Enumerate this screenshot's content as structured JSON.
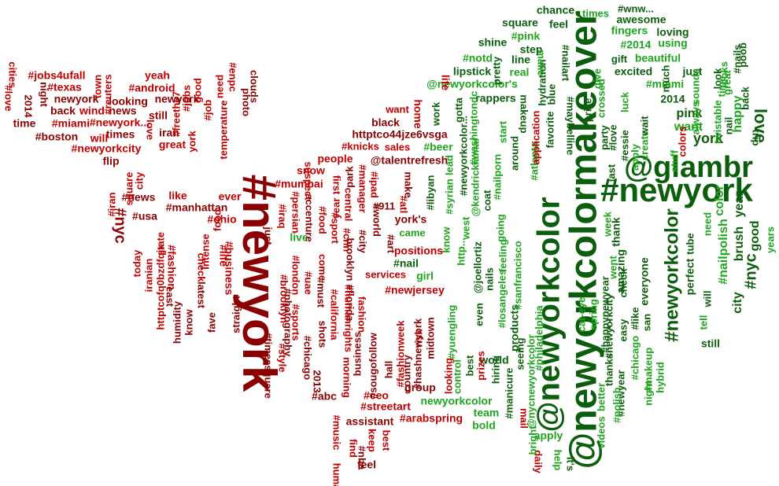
{
  "colors": {
    "red_dark": "#8b0000",
    "red": "#c00000",
    "green_dark": "#0b5e0b",
    "green": "#1ea51e",
    "green_light": "#33cc33"
  },
  "words": [
    {
      "text": "#newyork"
    },
    {
      "text": "@newyorkcolormakeover"
    },
    {
      "text": "@newyorkcolor"
    },
    {
      "text": "#newyork"
    },
    {
      "text": "@glambr"
    },
    {
      "text": "#newyorkcolor"
    },
    {
      "text": "newyork"
    },
    {
      "text": "love"
    },
    {
      "text": "york"
    },
    {
      "text": "color"
    },
    {
      "text": "#nailpolish"
    },
    {
      "text": "#nyc"
    },
    {
      "text": "brush"
    },
    {
      "text": "year"
    },
    {
      "text": "happy"
    },
    {
      "text": "good"
    },
    {
      "text": "city"
    },
    {
      "text": "#nyc"
    },
    {
      "text": "chance"
    },
    {
      "text": "times"
    },
    {
      "text": "#wnw..."
    },
    {
      "text": "awesome"
    },
    {
      "text": "feel"
    },
    {
      "text": "fingers"
    },
    {
      "text": "loving"
    },
    {
      "text": "square"
    },
    {
      "text": "#pink"
    },
    {
      "text": "#2014"
    },
    {
      "text": "using"
    },
    {
      "text": "shine"
    },
    {
      "text": "step"
    },
    {
      "text": "gift"
    },
    {
      "text": "beautiful"
    },
    {
      "text": "excited"
    },
    {
      "text": "just"
    },
    {
      "text": "#miami"
    },
    {
      "text": "2014"
    },
    {
      "text": "pink"
    },
    {
      "text": "want"
    },
    {
      "text": "line"
    },
    {
      "text": "lipstick"
    },
    {
      "text": "real"
    },
    {
      "text": "rappers"
    },
    {
      "text": "@newyorkcolor's"
    },
    {
      "text": "#notd"
    },
    {
      "text": "#nailart"
    },
    {
      "text": "black"
    },
    {
      "text": "httptco44jze6vsga"
    },
    {
      "text": "want"
    },
    {
      "text": "home"
    },
    {
      "text": "life"
    },
    {
      "text": "#knicks"
    },
    {
      "text": "sales"
    },
    {
      "text": "#beer"
    },
    {
      "text": "people"
    },
    {
      "text": "@talentrefresh"
    },
    {
      "text": "snow"
    },
    {
      "text": "#mumbai"
    },
    {
      "text": "#911"
    },
    {
      "text": "york's"
    },
    {
      "text": "came"
    },
    {
      "text": "live"
    },
    {
      "text": "positions"
    },
    {
      "text": "#nail"
    },
    {
      "text": "services"
    },
    {
      "text": "girl"
    },
    {
      "text": "#newjersey"
    },
    {
      "text": "#jobs4ufall"
    },
    {
      "text": "#texas"
    },
    {
      "text": "newyork"
    },
    {
      "text": "back"
    },
    {
      "text": "wind"
    },
    {
      "text": "news"
    },
    {
      "text": "#miami"
    },
    {
      "text": "#newyork..."
    },
    {
      "text": "time"
    },
    {
      "text": "times"
    },
    {
      "text": "#boston"
    },
    {
      "text": "will"
    },
    {
      "text": "#newyorkcity"
    },
    {
      "text": "#android"
    },
    {
      "text": "yeah"
    },
    {
      "text": "looking"
    },
    {
      "text": "still"
    },
    {
      "text": "iran"
    },
    {
      "text": "great"
    },
    {
      "text": "love"
    },
    {
      "text": "2014"
    },
    {
      "text": "night"
    },
    {
      "text": "flip"
    },
    {
      "text": "#news"
    },
    {
      "text": "like"
    },
    {
      "text": "#usa"
    },
    {
      "text": "#manhattan"
    },
    {
      "text": "ever"
    },
    {
      "text": "#ohio"
    },
    {
      "text": "#life"
    },
    {
      "text": "#business"
    },
    {
      "text": "east"
    },
    {
      "text": "latest"
    },
    {
      "text": "check"
    },
    {
      "text": "#fashion"
    },
    {
      "text": "#ceo"
    },
    {
      "text": "#streetart"
    },
    {
      "text": "assistant"
    },
    {
      "text": "#arabspring"
    },
    {
      "text": "group"
    },
    {
      "text": "newyorkcolor"
    },
    {
      "text": "team"
    },
    {
      "text": "bold"
    },
    {
      "text": "apply"
    },
    {
      "text": "#abc"
    },
    {
      "text": "feel"
    },
    {
      "text": "world"
    },
    {
      "text": "products"
    },
    {
      "text": "perfect"
    },
    {
      "text": "still"
    },
    {
      "text": "everyone"
    },
    {
      "text": "thank"
    },
    {
      "text": "amazing"
    },
    {
      "text": "daily"
    },
    {
      "text": "help"
    },
    {
      "text": "it's"
    },
    {
      "text": "mail"
    },
    {
      "text": "good"
    },
    {
      "text": "gotta"
    },
    {
      "text": "work"
    },
    {
      "text": "#atlanta"
    },
    {
      "text": "favorite"
    },
    {
      "text": "cities"
    },
    {
      "text": "#love"
    },
    {
      "text": "clouds"
    },
    {
      "text": "#enpc"
    },
    {
      "text": "photo"
    },
    {
      "text": "#photography"
    },
    {
      "text": "#fashionweek"
    },
    {
      "text": "midtown"
    },
    {
      "text": "risk"
    },
    {
      "text": "#hashnewyork"
    },
    {
      "text": "country"
    },
    {
      "text": "hall"
    },
    {
      "text": "#sougofollow"
    },
    {
      "text": "business"
    },
    {
      "text": "brooklyn"
    },
    {
      "text": "#florida"
    },
    {
      "text": "morning"
    },
    {
      "text": "#music"
    },
    {
      "text": "keep"
    },
    {
      "text": "#nba"
    },
    {
      "text": "best"
    },
    {
      "text": "human"
    },
    {
      "text": "find"
    },
    {
      "text": "fashion"
    },
    {
      "text": "#humanrights"
    },
    {
      "text": "#california"
    },
    {
      "text": "2013"
    },
    {
      "text": "shots"
    },
    {
      "text": "#chicago"
    },
    {
      "text": "come"
    },
    {
      "text": "#uae"
    },
    {
      "text": "#london"
    },
    {
      "text": "#sports"
    },
    {
      "text": "accenture"
    },
    {
      "text": "#brooklyn"
    },
    {
      "text": "#style"
    },
    {
      "text": "#timessquare"
    },
    {
      "text": "#iraq"
    },
    {
      "text": "just"
    },
    {
      "text": "#persian"
    },
    {
      "text": "suspect"
    },
    {
      "text": "#food"
    },
    {
      "text": "#sport"
    },
    {
      "text": "#must"
    },
    {
      "text": "#cnn"
    },
    {
      "text": "central"
    },
    {
      "text": "first"
    },
    {
      "text": "#city"
    },
    {
      "text": "#world"
    },
    {
      "text": "#manager"
    },
    {
      "text": "#ipad"
    },
    {
      "text": "#art"
    },
    {
      "text": "#atl"
    },
    {
      "text": "make"
    },
    {
      "text": "year"
    },
    {
      "text": "park"
    },
    {
      "text": "#libyan"
    },
    {
      "text": "#syrian"
    },
    {
      "text": "know"
    },
    {
      "text": "http..."
    },
    {
      "text": "lead"
    },
    {
      "text": "#yuengling"
    },
    {
      "text": "looking"
    },
    {
      "text": "best"
    },
    {
      "text": "control"
    },
    {
      "text": "prizes"
    },
    {
      "text": "#manicure"
    },
    {
      "text": "hiring"
    },
    {
      "text": "seeing"
    },
    {
      "text": "even"
    },
    {
      "text": "west"
    },
    {
      "text": "@joellortiz"
    },
    {
      "text": "nails"
    },
    {
      "text": "#losangeles"
    },
    {
      "text": "feeling"
    },
    {
      "text": "#sanfrancisco"
    },
    {
      "text": "@nycnewyorkcolor"
    },
    {
      "text": "#philadelphia"
    },
    {
      "text": "bright"
    },
    {
      "text": "#maybelline"
    },
    {
      "text": "@kendricklamar"
    },
    {
      "text": "#newyorkcolor..."
    },
    {
      "text": "#washingtondc"
    },
    {
      "text": "coat"
    },
    {
      "text": "going"
    },
    {
      "text": "#nailporn"
    },
    {
      "text": "around"
    },
    {
      "text": "start"
    },
    {
      "text": "makeup"
    },
    {
      "text": "application"
    },
    {
      "text": "pretty"
    },
    {
      "text": "hydration"
    },
    {
      "text": "blue"
    },
    {
      "text": "make"
    },
    {
      "text": "crossed"
    },
    {
      "text": "give"
    },
    {
      "text": "prize"
    },
    {
      "text": "party"
    },
    {
      "text": "last"
    },
    {
      "text": "#love"
    },
    {
      "text": "#essie"
    },
    {
      "text": "apply"
    },
    {
      "text": "luck"
    },
    {
      "text": "create"
    },
    {
      "text": "wait"
    },
    {
      "text": "much"
    },
    {
      "text": "stuff"
    },
    {
      "text": "colors"
    },
    {
      "text": "always"
    },
    {
      "text": "sounds"
    },
    {
      "text": "twistable"
    },
    {
      "text": "look"
    },
    {
      "text": "great"
    },
    {
      "text": "nail"
    },
    {
      "text": "time"
    },
    {
      "text": "looks"
    },
    {
      "text": "#nails"
    },
    {
      "text": "back"
    },
    {
      "text": "trip"
    },
    {
      "text": "years"
    },
    {
      "text": "need"
    },
    {
      "text": "tube"
    },
    {
      "text": "will"
    },
    {
      "text": "san"
    },
    {
      "text": "easy"
    },
    {
      "text": "#like"
    },
    {
      "text": "check"
    },
    {
      "text": "#newyorkcity"
    },
    {
      "text": "thanks"
    },
    {
      "text": "#newyear"
    },
    {
      "text": "#happynewyear"
    },
    {
      "text": "#polish"
    },
    {
      "text": "#makeup"
    },
    {
      "text": "hybrid"
    },
    {
      "text": "night"
    },
    {
      "text": "#chicago"
    },
    {
      "text": "tell"
    },
    {
      "text": "better"
    },
    {
      "text": "videos"
    },
    {
      "text": "went"
    },
    {
      "text": "week"
    },
    {
      "text": "spring"
    },
    {
      "text": "cat-eye"
    },
    {
      "text": "fave"
    },
    {
      "text": "straight"
    },
    {
      "text": "know"
    },
    {
      "text": "intense"
    },
    {
      "text": "food"
    },
    {
      "text": "state"
    },
    {
      "text": "humidity"
    },
    {
      "text": "httptcofq0bzdfqjx"
    },
    {
      "text": "iranian"
    },
    {
      "text": "today"
    },
    {
      "text": "#iran"
    },
    {
      "text": "square"
    },
    {
      "text": "city"
    },
    {
      "text": "#freethe7"
    },
    {
      "text": "york"
    },
    {
      "text": "#jobs"
    },
    {
      "text": "#job"
    },
    {
      "text": "good"
    },
    {
      "text": "need"
    },
    {
      "text": "temperature"
    },
    {
      "text": "town"
    },
    {
      "text": "#reuters"
    },
    {
      "text": "#nfl"
    },
    {
      "text": "live"
    },
    {
      "text": "amazing"
    },
    {
      "text": "last"
    },
    {
      "text": "girl"
    }
  ]
}
